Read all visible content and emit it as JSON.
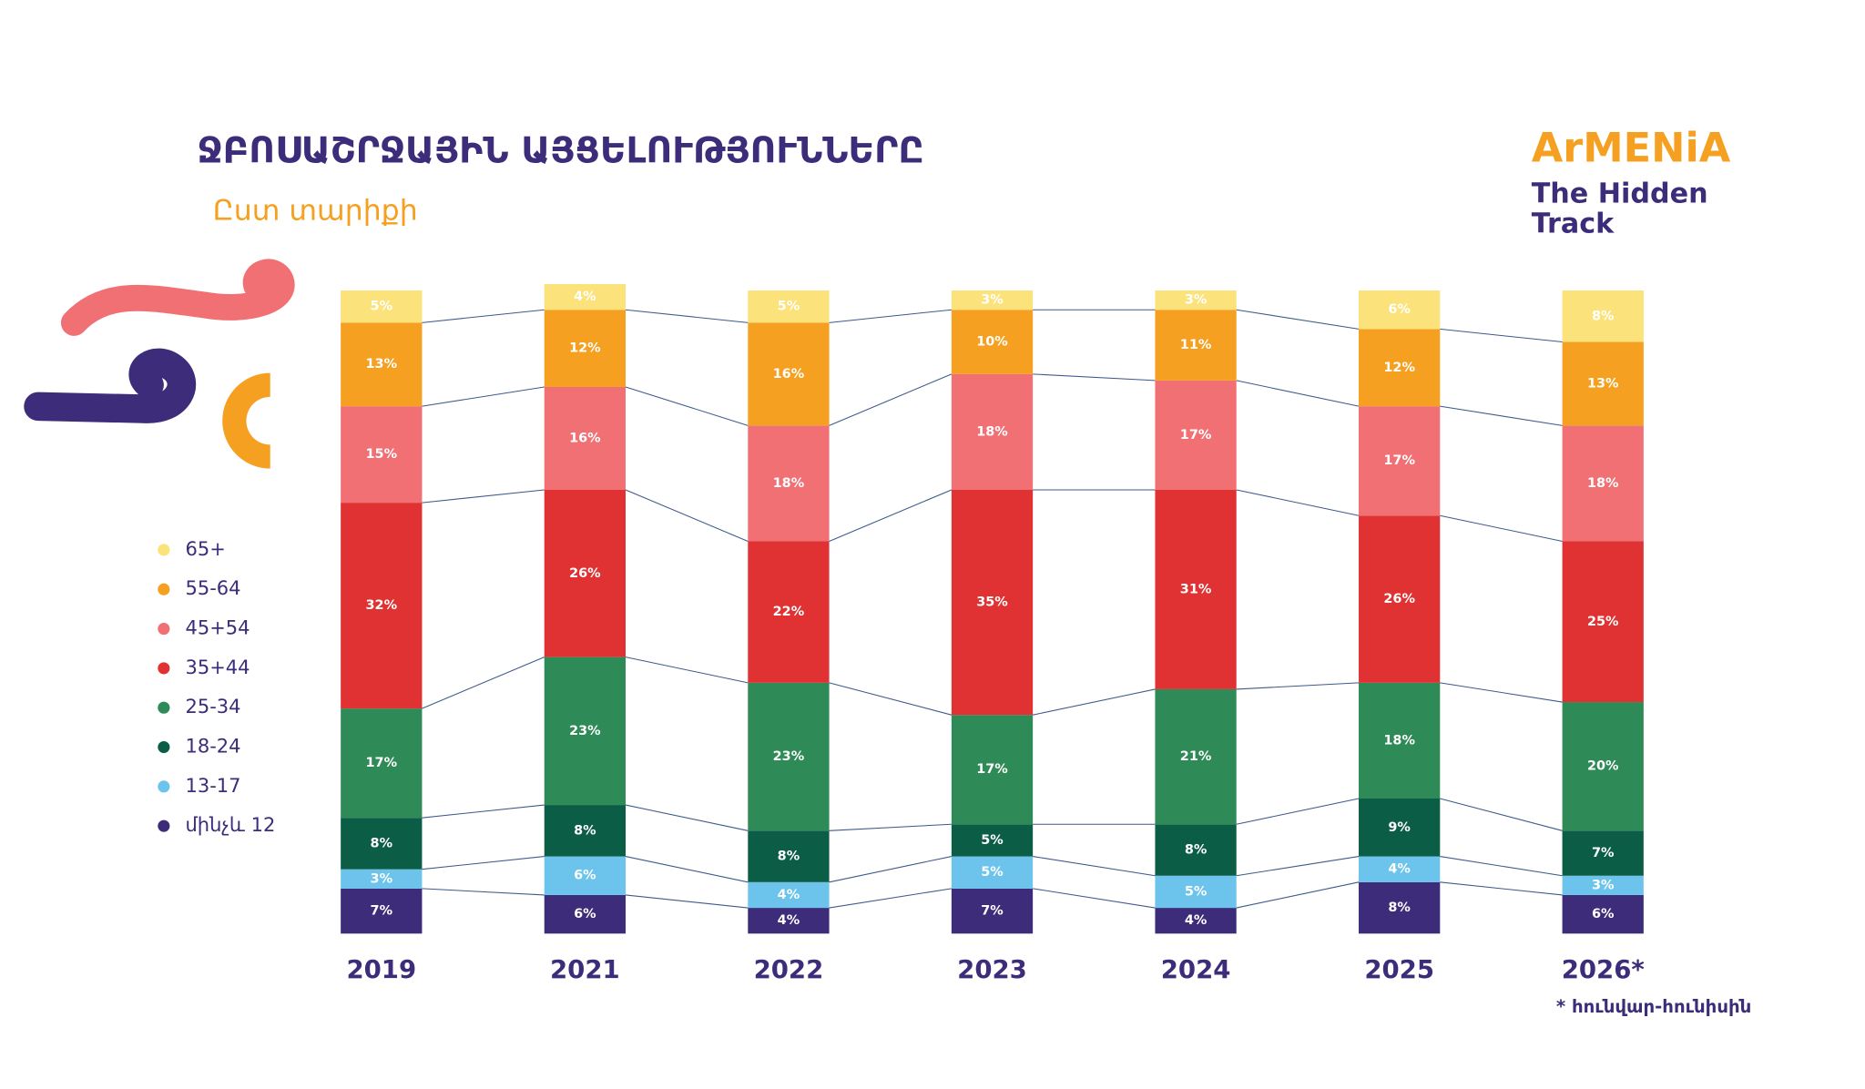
{
  "chart_data": {
    "type": "stacked_bar",
    "title": "ՋԲՈՍԱՇՐՋԱՅԻՆ ԱՅՑԵԼՈՒԹՅՈՒՆՆԵՐԸ",
    "subtitle": "Ըստ տարիքի",
    "brand": [
      "ArMENiA",
      "The Hidden",
      "Track"
    ],
    "footnote": "* հունվար-հունիսին",
    "categories": [
      "2019",
      "2021",
      "2022",
      "2023",
      "2024",
      "2025",
      "2026*"
    ],
    "series": [
      {
        "name": "մինչև 12",
        "color": "#3d2c7a",
        "values": [
          7,
          6,
          4,
          7,
          4,
          8,
          6
        ],
        "value_labels": [
          "7%",
          "6%",
          "4%",
          "7%",
          "4%",
          "8%",
          "6%"
        ]
      },
      {
        "name": "13-17",
        "color": "#6cc4ec",
        "values": [
          3,
          6,
          4,
          5,
          5,
          4,
          3
        ],
        "value_labels": [
          "3%",
          "6%",
          "4%",
          "5%",
          "5%",
          "4%",
          "3%"
        ]
      },
      {
        "name": "18-24",
        "color": "#0b5e45",
        "values": [
          8,
          8,
          8,
          5,
          8,
          9,
          7
        ],
        "value_labels": [
          "8%",
          "8%",
          "8%",
          "5%",
          "8%",
          "9%",
          "7%"
        ]
      },
      {
        "name": "25-34",
        "color": "#2e8b57",
        "values": [
          17,
          23,
          23,
          17,
          21,
          18,
          20
        ],
        "value_labels": [
          "17%",
          "23%",
          "23%",
          "17%",
          "21%",
          "18%",
          "20%"
        ]
      },
      {
        "name": "35+44",
        "color": "#e03232",
        "values": [
          32,
          26,
          22,
          35,
          31,
          26,
          25
        ],
        "value_labels": [
          "32%",
          "26%",
          "22%",
          "35%",
          "31%",
          "26%",
          "25%"
        ]
      },
      {
        "name": "45+54",
        "color": "#f07074",
        "values": [
          15,
          16,
          18,
          18,
          17,
          17,
          18
        ],
        "value_labels": [
          "15%",
          "16%",
          "18%",
          "18%",
          "17%",
          "17%",
          "18%"
        ]
      },
      {
        "name": "55-64",
        "color": "#f5a020",
        "values": [
          13,
          12,
          16,
          10,
          11,
          12,
          13
        ],
        "value_labels": [
          "13%",
          "12%",
          "16%",
          "10%",
          "11%",
          "12%",
          "13%"
        ]
      },
      {
        "name": "65+",
        "color": "#fbe27a",
        "values": [
          5,
          4,
          5,
          3,
          3,
          6,
          8
        ],
        "value_labels": [
          "5%",
          "4%",
          "5%",
          "3%",
          "3%",
          "6%",
          "8%"
        ]
      }
    ]
  }
}
